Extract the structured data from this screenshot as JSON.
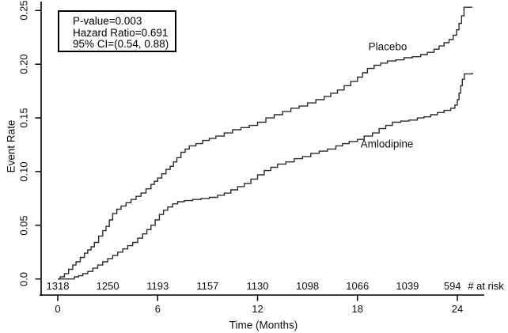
{
  "chart_data": {
    "type": "line",
    "subtype": "kaplan-meier-step",
    "title": "",
    "xlabel": "Time (Months)",
    "ylabel": "Event Rate",
    "xlim": [
      0,
      25.6
    ],
    "ylim": [
      0,
      0.25
    ],
    "grid": false,
    "legend_position": "inline-curve-labels",
    "x_ticks": [
      {
        "v": 0,
        "label": "0"
      },
      {
        "v": 6,
        "label": "6"
      },
      {
        "v": 12,
        "label": "12"
      },
      {
        "v": 18,
        "label": "18"
      },
      {
        "v": 24,
        "label": "24"
      }
    ],
    "y_ticks": [
      {
        "v": 0.0,
        "label": "0.0"
      },
      {
        "v": 0.05,
        "label": "0.05"
      },
      {
        "v": 0.1,
        "label": "0.10"
      },
      {
        "v": 0.15,
        "label": "0.15"
      },
      {
        "v": 0.2,
        "label": "0.20"
      },
      {
        "v": 0.25,
        "label": "0.25"
      }
    ],
    "series": [
      {
        "name": "Placebo",
        "points": [
          [
            0,
            0
          ],
          [
            0.15,
            0.002
          ],
          [
            0.4,
            0.005
          ],
          [
            0.65,
            0.009
          ],
          [
            0.9,
            0.013
          ],
          [
            1.1,
            0.016
          ],
          [
            1.35,
            0.02
          ],
          [
            1.6,
            0.024
          ],
          [
            1.8,
            0.027
          ],
          [
            2.0,
            0.03
          ],
          [
            2.2,
            0.034
          ],
          [
            2.45,
            0.04
          ],
          [
            2.7,
            0.045
          ],
          [
            2.9,
            0.049
          ],
          [
            3.1,
            0.055
          ],
          [
            3.3,
            0.061
          ],
          [
            3.55,
            0.065
          ],
          [
            3.8,
            0.068
          ],
          [
            4.1,
            0.071
          ],
          [
            4.4,
            0.074
          ],
          [
            4.7,
            0.077
          ],
          [
            5.0,
            0.08
          ],
          [
            5.3,
            0.084
          ],
          [
            5.6,
            0.088
          ],
          [
            5.8,
            0.091
          ],
          [
            6.0,
            0.094
          ],
          [
            6.25,
            0.098
          ],
          [
            6.5,
            0.102
          ],
          [
            6.75,
            0.105
          ],
          [
            6.95,
            0.109
          ],
          [
            7.15,
            0.113
          ],
          [
            7.4,
            0.118
          ],
          [
            7.65,
            0.121
          ],
          [
            7.9,
            0.124
          ],
          [
            8.3,
            0.126
          ],
          [
            8.7,
            0.129
          ],
          [
            9.1,
            0.131
          ],
          [
            9.5,
            0.133
          ],
          [
            10.0,
            0.136
          ],
          [
            10.5,
            0.139
          ],
          [
            11.0,
            0.141
          ],
          [
            11.5,
            0.143
          ],
          [
            12.0,
            0.146
          ],
          [
            12.5,
            0.15
          ],
          [
            13.0,
            0.153
          ],
          [
            13.5,
            0.156
          ],
          [
            14.0,
            0.159
          ],
          [
            14.5,
            0.161
          ],
          [
            15.0,
            0.164
          ],
          [
            15.5,
            0.167
          ],
          [
            16.0,
            0.17
          ],
          [
            16.4,
            0.173
          ],
          [
            16.8,
            0.176
          ],
          [
            17.2,
            0.18
          ],
          [
            17.6,
            0.184
          ],
          [
            18.0,
            0.188
          ],
          [
            18.3,
            0.192
          ],
          [
            18.6,
            0.196
          ],
          [
            19.0,
            0.199
          ],
          [
            19.4,
            0.201
          ],
          [
            19.8,
            0.203
          ],
          [
            20.3,
            0.204
          ],
          [
            20.8,
            0.206
          ],
          [
            21.3,
            0.207
          ],
          [
            21.8,
            0.209
          ],
          [
            22.2,
            0.211
          ],
          [
            22.6,
            0.214
          ],
          [
            22.9,
            0.217
          ],
          [
            23.2,
            0.22
          ],
          [
            23.5,
            0.223
          ],
          [
            23.75,
            0.227
          ],
          [
            23.95,
            0.232
          ],
          [
            24.1,
            0.238
          ],
          [
            24.25,
            0.245
          ],
          [
            24.4,
            0.253
          ],
          [
            24.9,
            0.253
          ]
        ]
      },
      {
        "name": "Amlodipine",
        "points": [
          [
            0,
            0
          ],
          [
            0.8,
            0
          ],
          [
            1.0,
            0.002
          ],
          [
            1.25,
            0.003
          ],
          [
            1.5,
            0.005
          ],
          [
            1.8,
            0.007
          ],
          [
            2.1,
            0.01
          ],
          [
            2.4,
            0.013
          ],
          [
            2.7,
            0.016
          ],
          [
            3.0,
            0.019
          ],
          [
            3.3,
            0.022
          ],
          [
            3.6,
            0.025
          ],
          [
            3.9,
            0.028
          ],
          [
            4.2,
            0.031
          ],
          [
            4.5,
            0.034
          ],
          [
            4.8,
            0.038
          ],
          [
            5.1,
            0.042
          ],
          [
            5.35,
            0.046
          ],
          [
            5.6,
            0.05
          ],
          [
            5.85,
            0.055
          ],
          [
            6.1,
            0.06
          ],
          [
            6.35,
            0.064
          ],
          [
            6.6,
            0.067
          ],
          [
            6.9,
            0.07
          ],
          [
            7.2,
            0.072
          ],
          [
            7.6,
            0.073
          ],
          [
            8.1,
            0.074
          ],
          [
            8.6,
            0.075
          ],
          [
            9.1,
            0.076
          ],
          [
            9.6,
            0.078
          ],
          [
            10.0,
            0.08
          ],
          [
            10.4,
            0.083
          ],
          [
            10.8,
            0.086
          ],
          [
            11.2,
            0.089
          ],
          [
            11.6,
            0.093
          ],
          [
            12.0,
            0.097
          ],
          [
            12.4,
            0.101
          ],
          [
            12.8,
            0.104
          ],
          [
            13.2,
            0.107
          ],
          [
            13.7,
            0.109
          ],
          [
            14.2,
            0.112
          ],
          [
            14.7,
            0.114
          ],
          [
            15.2,
            0.117
          ],
          [
            15.7,
            0.119
          ],
          [
            16.2,
            0.121
          ],
          [
            16.7,
            0.124
          ],
          [
            17.1,
            0.126
          ],
          [
            17.5,
            0.128
          ],
          [
            18.0,
            0.13
          ],
          [
            18.4,
            0.133
          ],
          [
            18.9,
            0.136
          ],
          [
            19.3,
            0.14
          ],
          [
            19.7,
            0.143
          ],
          [
            20.1,
            0.146
          ],
          [
            20.6,
            0.147
          ],
          [
            21.1,
            0.148
          ],
          [
            21.6,
            0.15
          ],
          [
            22.0,
            0.151
          ],
          [
            22.4,
            0.153
          ],
          [
            22.8,
            0.155
          ],
          [
            23.2,
            0.157
          ],
          [
            23.6,
            0.159
          ],
          [
            23.85,
            0.162
          ],
          [
            24.0,
            0.167
          ],
          [
            24.1,
            0.173
          ],
          [
            24.2,
            0.18
          ],
          [
            24.3,
            0.186
          ],
          [
            24.42,
            0.191
          ],
          [
            24.9,
            0.192
          ]
        ]
      }
    ],
    "at_risk": {
      "caption": "# at risk",
      "counts": [
        {
          "t": 0,
          "n": "1318"
        },
        {
          "t": 3,
          "n": "1250"
        },
        {
          "t": 6,
          "n": "1193"
        },
        {
          "t": 9,
          "n": "1157"
        },
        {
          "t": 12,
          "n": "1130"
        },
        {
          "t": 15,
          "n": "1098"
        },
        {
          "t": 18,
          "n": "1066"
        },
        {
          "t": 21,
          "n": "1039"
        },
        {
          "t": 23.7,
          "n": "594"
        }
      ]
    }
  },
  "annotation": {
    "line1": "P-value=0.003",
    "line2": "Hazard Ratio=0.691",
    "line3": "95% CI=(0.54, 0.88)"
  },
  "colors": {
    "background": "#ffffff",
    "axis": "#000000",
    "curve": "#2b2b2b",
    "text": "#0f0f0f",
    "annotation_border": "#000000"
  }
}
